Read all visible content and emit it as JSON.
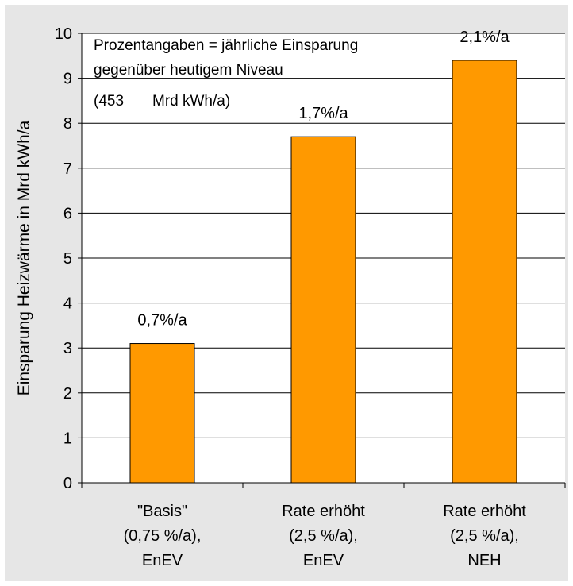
{
  "chart_data": {
    "type": "bar",
    "title": "",
    "ylabel": "Einsparung Heizwärme in Mrd kWh/a",
    "xlabel": "",
    "ylim": [
      0,
      10
    ],
    "yticks": [
      0,
      1,
      2,
      3,
      4,
      5,
      6,
      7,
      8,
      9,
      10
    ],
    "grid": true,
    "colors": {
      "bar": "#ff9900",
      "bar_stroke": "#000000",
      "background": "#e6e6e6",
      "plot_bg": "#ffffff"
    },
    "categories": [
      [
        "\"Basis\"",
        "(0,75 %/a),",
        "EnEV"
      ],
      [
        "Rate erhöht",
        "(2,5 %/a),",
        "EnEV"
      ],
      [
        "Rate erhöht",
        "(2,5 %/a),",
        "NEH"
      ]
    ],
    "values": [
      3.1,
      7.7,
      9.4
    ],
    "data_labels": [
      "0,7%/a",
      "1,7%/a",
      "2,1%/a"
    ],
    "annotations": [
      "Prozentangaben = jährliche Einsparung",
      "gegenüber heutigem Niveau",
      "(453",
      "Mrd kWh/a)"
    ]
  }
}
